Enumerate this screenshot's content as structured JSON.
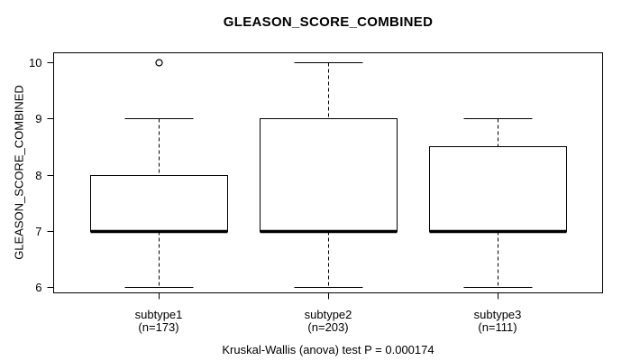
{
  "figure": {
    "background": "#ffffff"
  },
  "chart_data": {
    "type": "boxplot",
    "title": "GLEASON_SCORE_COMBINED",
    "ylabel": "GLEASON_SCORE_COMBINED",
    "xlabel": "",
    "caption": "Kruskal-Wallis (anova) test P = 0.000174",
    "ylim": [
      6,
      10
    ],
    "yticks": [
      6,
      7,
      8,
      9,
      10
    ],
    "grid": false,
    "legend": null,
    "colors": {
      "stroke": "#000000",
      "box_fill": "#ffffff"
    },
    "groups": [
      {
        "label": "subtype1",
        "n_label": "(n=173)",
        "n": 173,
        "stats": {
          "whisker_low": 6,
          "q1": 7,
          "median": 7,
          "q3": 8,
          "whisker_high": 9
        },
        "outliers": [
          10
        ]
      },
      {
        "label": "subtype2",
        "n_label": "(n=203)",
        "n": 203,
        "stats": {
          "whisker_low": 6,
          "q1": 7,
          "median": 7,
          "q3": 9,
          "whisker_high": 10
        },
        "outliers": []
      },
      {
        "label": "subtype3",
        "n_label": "(n=111)",
        "n": 111,
        "stats": {
          "whisker_low": 6,
          "q1": 7,
          "median": 7,
          "q3": 8.5,
          "whisker_high": 9
        },
        "outliers": []
      }
    ]
  }
}
